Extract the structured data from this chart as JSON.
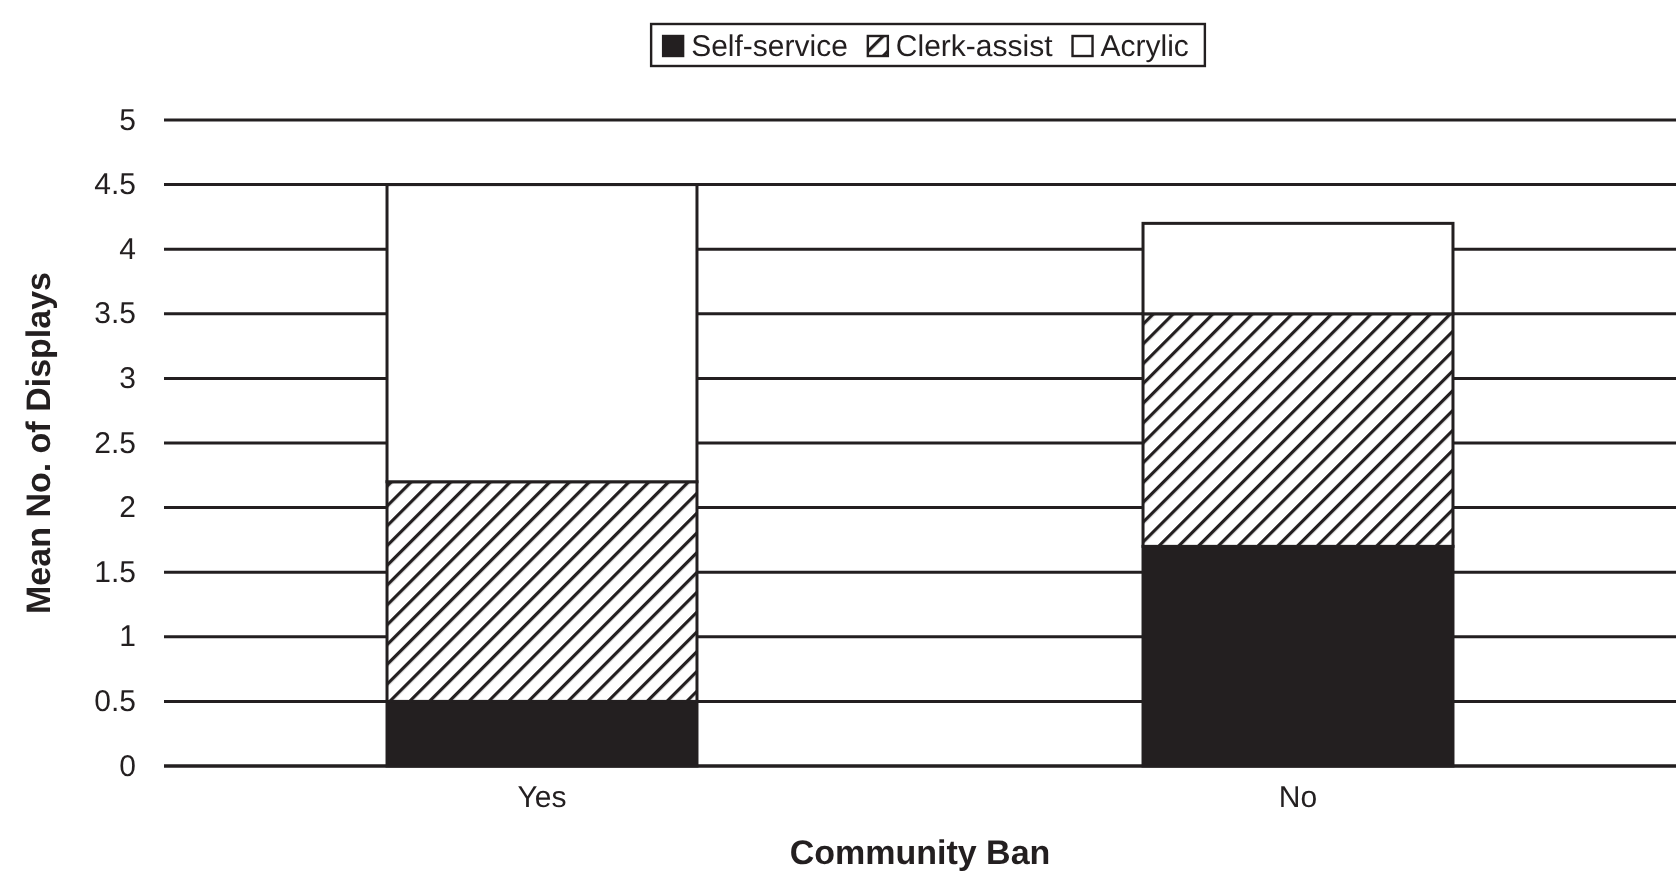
{
  "chart_data": {
    "type": "bar",
    "stacked": true,
    "categories": [
      "Yes",
      "No"
    ],
    "xlabel": "Community Ban",
    "ylabel": "Mean No. of Displays",
    "ylim": [
      0,
      5
    ],
    "yticks": [
      0,
      0.5,
      1,
      1.5,
      2,
      2.5,
      3,
      3.5,
      4,
      4.5,
      5
    ],
    "grid": "y",
    "legend": "top",
    "series": [
      {
        "name": "Self-service",
        "color": "#231f20",
        "values": [
          0.5,
          1.7
        ]
      },
      {
        "name": "Clerk-assist",
        "color": "#231f20",
        "values": [
          1.7,
          1.8
        ]
      },
      {
        "name": "Acrylic",
        "color": "#ffffff",
        "values": [
          2.3,
          0.7
        ]
      }
    ]
  }
}
